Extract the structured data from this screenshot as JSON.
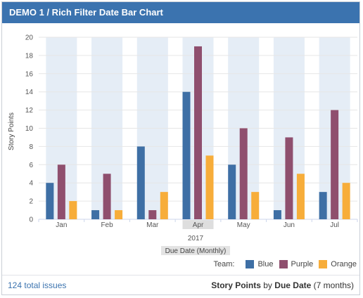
{
  "header": {
    "title": "DEMO 1 / Rich Filter Date Bar Chart"
  },
  "chart_data": {
    "type": "bar",
    "categories": [
      "Jan",
      "Feb",
      "Mar",
      "Apr",
      "May",
      "Jun",
      "Jul"
    ],
    "series": [
      {
        "name": "Blue",
        "color": "#3e6fa5",
        "values": [
          4,
          1,
          8,
          14,
          6,
          1,
          3
        ]
      },
      {
        "name": "Purple",
        "color": "#8f4f6e",
        "values": [
          6,
          5,
          1,
          19,
          10,
          9,
          12
        ]
      },
      {
        "name": "Orange",
        "color": "#f7ad3a",
        "values": [
          2,
          1,
          3,
          7,
          3,
          5,
          4
        ]
      }
    ],
    "ylabel": "Story Points",
    "xlabel": "Due Date (Monthly)",
    "year_label": "2017",
    "highlighted_category": "Apr",
    "ylim": [
      0,
      20
    ],
    "yticks": [
      0,
      2,
      4,
      6,
      8,
      10,
      12,
      14,
      16,
      18,
      20
    ],
    "grid": true,
    "legend_position": "bottom-right"
  },
  "legend": {
    "title": "Team:"
  },
  "footer": {
    "issues": "124 total issues",
    "metric": "Story Points",
    "by": "by",
    "dimension": "Due Date",
    "period": "(7 months)"
  }
}
